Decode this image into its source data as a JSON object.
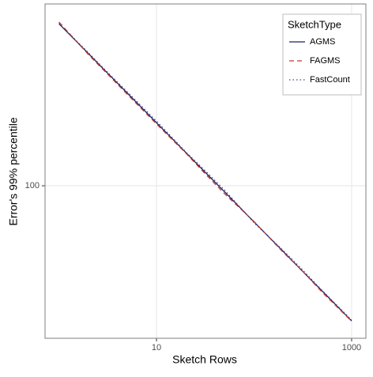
{
  "chart_data": {
    "type": "line",
    "xlabel": "Sketch Rows",
    "ylabel": "Error's 99% percentile",
    "xscale": "log",
    "yscale": "log",
    "x": [
      1,
      2,
      3,
      5,
      10,
      20,
      30,
      50,
      100,
      200,
      300,
      500,
      1000
    ],
    "series": [
      {
        "name": "AGMS",
        "color": "#1f1f6b",
        "dash": "solid",
        "values": [
          657,
          465,
          379,
          294,
          208,
          147,
          120,
          93,
          65.7,
          46.5,
          37.9,
          29.4,
          20.8
        ]
      },
      {
        "name": "FAGMS",
        "color": "#c0392b",
        "dash": "dashed",
        "values": [
          670,
          460,
          375,
          290,
          205,
          146,
          118,
          91,
          66,
          46,
          38,
          29,
          20.7
        ]
      },
      {
        "name": "FastCount",
        "color": "#4a4a78",
        "dash": "dotted",
        "values": [
          660,
          470,
          383,
          298,
          212,
          148,
          122,
          95,
          65,
          47,
          38.5,
          29.6,
          21
        ]
      }
    ],
    "legend_title": "SketchType",
    "legend": "top-right",
    "xlim": [
      0.72,
      1400
    ],
    "ylim": [
      17,
      827
    ],
    "xticks": [
      10,
      1000
    ],
    "yticks": [
      100
    ],
    "grid": true
  }
}
